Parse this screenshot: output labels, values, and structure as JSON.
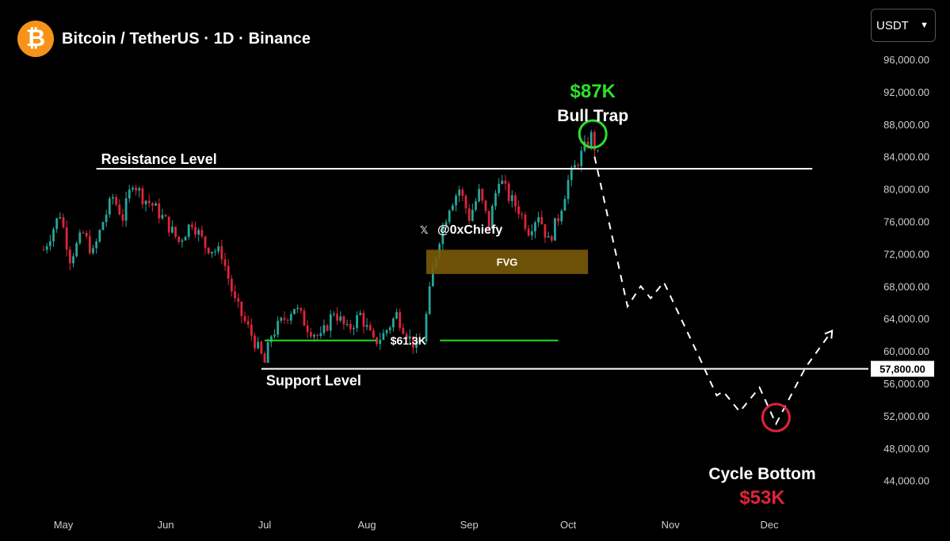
{
  "header": {
    "title": "Bitcoin / TetherUS · 1D · Binance",
    "logo_symbol": "₿"
  },
  "currency_select": {
    "value": "USDT"
  },
  "chart_data": {
    "type": "candlestick",
    "title": "Bitcoin / TetherUS · 1D · Binance",
    "x_ticks": [
      "May",
      "Jun",
      "Jul",
      "Aug",
      "Sep",
      "Oct",
      "Nov",
      "Dec"
    ],
    "y_ticks": [
      "96,000.00",
      "92,000.00",
      "88,000.00",
      "84,000.00",
      "80,000.00",
      "76,000.00",
      "72,000.00",
      "68,000.00",
      "64,000.00",
      "60,000.00",
      "56,000.00",
      "52,000.00",
      "48,000.00",
      "44,000.00"
    ],
    "ylim": [
      41000,
      99000
    ],
    "colors": {
      "up": "#26a69a",
      "down": "#e0243a",
      "bull": "#2de02d",
      "bear": "#e0243a"
    },
    "price_path": [
      [
        "2024-04-25",
        72500
      ],
      [
        "2024-04-30",
        77000
      ],
      [
        "2024-05-03",
        71500
      ],
      [
        "2024-05-07",
        74500
      ],
      [
        "2024-05-10",
        72000
      ],
      [
        "2024-05-13",
        76000
      ],
      [
        "2024-05-16",
        79000
      ],
      [
        "2024-05-19",
        76500
      ],
      [
        "2024-05-22",
        81000
      ],
      [
        "2024-05-25",
        79000
      ],
      [
        "2024-05-28",
        78000
      ],
      [
        "2024-06-01",
        76000
      ],
      [
        "2024-06-05",
        73500
      ],
      [
        "2024-06-09",
        76000
      ],
      [
        "2024-06-13",
        73000
      ],
      [
        "2024-06-18",
        72000
      ],
      [
        "2024-06-22",
        66000
      ],
      [
        "2024-06-27",
        62000
      ],
      [
        "2024-07-01",
        58500
      ],
      [
        "2024-07-03",
        62000
      ],
      [
        "2024-07-06",
        63500
      ],
      [
        "2024-07-10",
        65500
      ],
      [
        "2024-07-14",
        63000
      ],
      [
        "2024-07-18",
        61500
      ],
      [
        "2024-07-22",
        65000
      ],
      [
        "2024-07-26",
        62500
      ],
      [
        "2024-07-30",
        64500
      ],
      [
        "2024-08-03",
        61000
      ],
      [
        "2024-08-06",
        62000
      ],
      [
        "2024-08-10",
        64500
      ],
      [
        "2024-08-14",
        61500
      ],
      [
        "2024-08-16",
        60500
      ],
      [
        "2024-08-18",
        61500
      ],
      [
        "2024-08-21",
        70000
      ],
      [
        "2024-08-23",
        74000
      ],
      [
        "2024-08-26",
        78000
      ],
      [
        "2024-08-29",
        80000
      ],
      [
        "2024-09-01",
        76500
      ],
      [
        "2024-09-04",
        79500
      ],
      [
        "2024-09-07",
        75500
      ],
      [
        "2024-09-10",
        81500
      ],
      [
        "2024-09-13",
        79000
      ],
      [
        "2024-09-16",
        77500
      ],
      [
        "2024-09-19",
        75000
      ],
      [
        "2024-09-22",
        77000
      ],
      [
        "2024-09-25",
        73500
      ],
      [
        "2024-09-28",
        76500
      ],
      [
        "2024-10-01",
        81000
      ],
      [
        "2024-10-04",
        83500
      ],
      [
        "2024-10-08",
        86500
      ],
      [
        "2024-10-10",
        84000
      ]
    ],
    "levels": [
      {
        "name": "Resistance Level",
        "y": 82500,
        "x_start": "2024-05-11",
        "x_end": "2024-12-14"
      },
      {
        "name": "Support Level",
        "y": 57800,
        "x_start": "2024-06-30",
        "x_end": "2024-12-31",
        "price_label": "57,800.00"
      },
      {
        "name": "$61.3K",
        "y": 61300,
        "x_start": "2024-07-01",
        "x_end": "2024-09-28"
      }
    ],
    "fvg_zone": {
      "label": "FVG",
      "y_low": 69500,
      "y_high": 72500,
      "x_start": "2024-08-19",
      "x_end": "2024-10-07"
    },
    "projection": [
      [
        "2024-10-09",
        84000
      ],
      [
        "2024-10-19",
        65500
      ],
      [
        "2024-10-23",
        68000
      ],
      [
        "2024-10-26",
        66500
      ],
      [
        "2024-10-30",
        68500
      ],
      [
        "2024-11-10",
        59000
      ],
      [
        "2024-11-15",
        54500
      ],
      [
        "2024-11-17",
        55000
      ],
      [
        "2024-11-22",
        52500
      ],
      [
        "2024-11-28",
        55500
      ],
      [
        "2024-12-03",
        51000
      ],
      [
        "2024-12-12",
        58000
      ],
      [
        "2024-12-20",
        62500
      ]
    ],
    "annotations": {
      "bull_trap_price": "$87K",
      "bull_trap_label": "Bull Trap",
      "cycle_bottom_label": "Cycle Bottom",
      "cycle_bottom_price": "$53K",
      "watermark": "@0xChiefy",
      "watermark_icon": "𝕏"
    }
  }
}
